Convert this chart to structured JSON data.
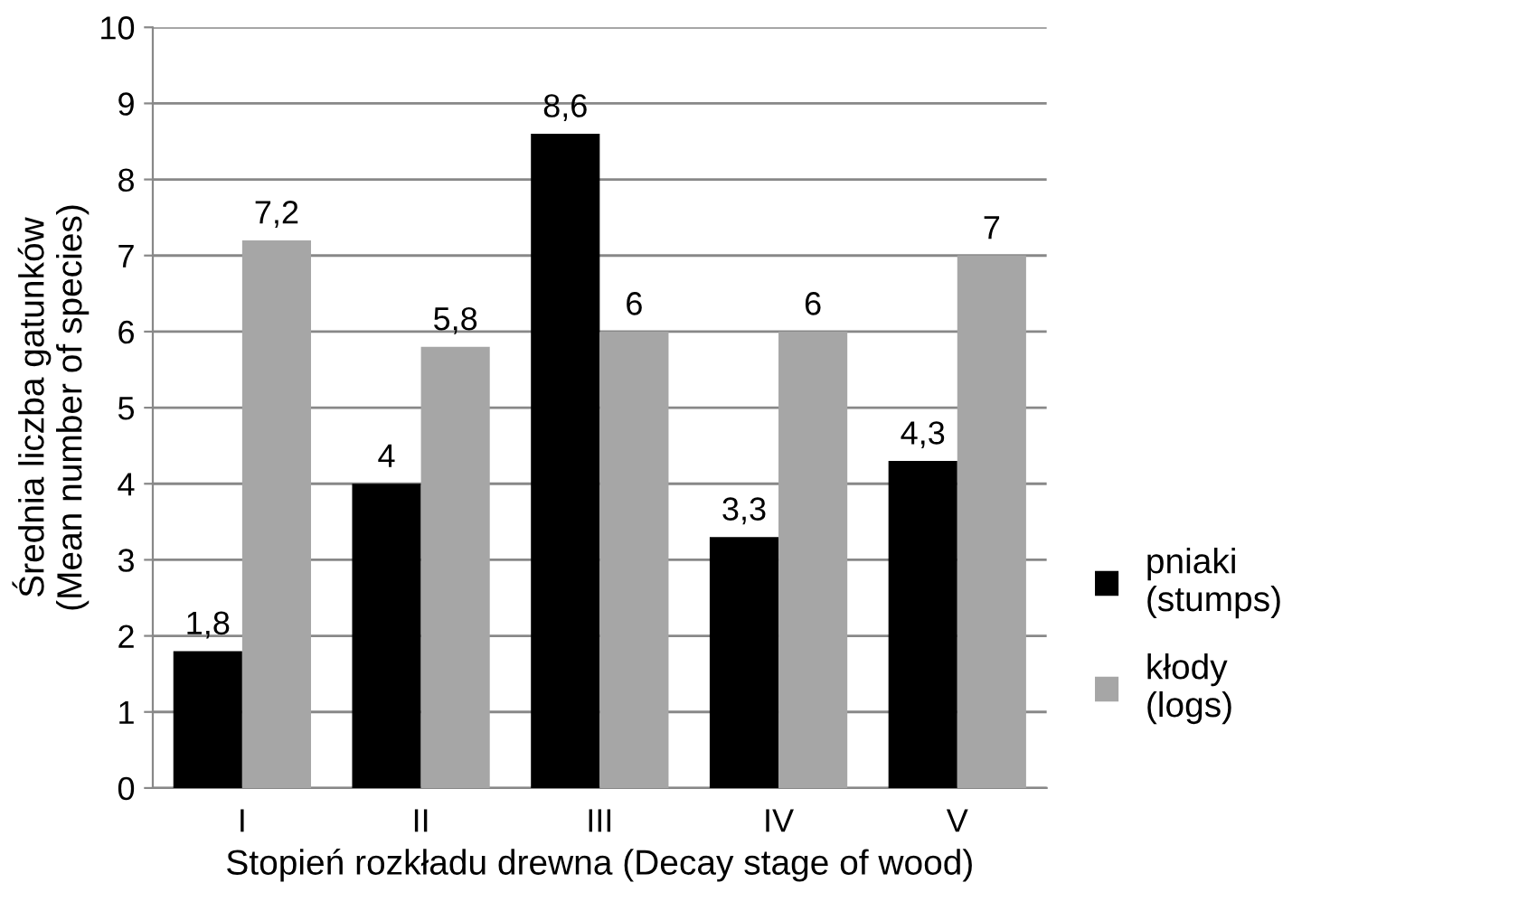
{
  "chart_data": {
    "type": "bar",
    "xlabel": "Stopień rozkładu drewna (Decay stage of wood)",
    "ylabel": "Średnia liczba gatunków\n(Mean number of species)",
    "categories": [
      "I",
      "II",
      "III",
      "IV",
      "V"
    ],
    "series": [
      {
        "name": "pniaki\n(stumps)",
        "color": "#000000",
        "values": [
          1.8,
          4,
          8.6,
          3.3,
          4.3
        ],
        "value_labels": [
          "1,8",
          "4",
          "8,6",
          "3,3",
          "4,3"
        ]
      },
      {
        "name": "kłody\n(logs)",
        "color": "#a6a6a6",
        "values": [
          7.2,
          5.8,
          6,
          6,
          7
        ],
        "value_labels": [
          "7,2",
          "5,8",
          "6",
          "6",
          "7"
        ]
      }
    ],
    "ylim": [
      0,
      10
    ],
    "yticks": [
      0,
      1,
      2,
      3,
      4,
      5,
      6,
      7,
      8,
      9,
      10
    ],
    "grid": "y",
    "legend": "right"
  }
}
